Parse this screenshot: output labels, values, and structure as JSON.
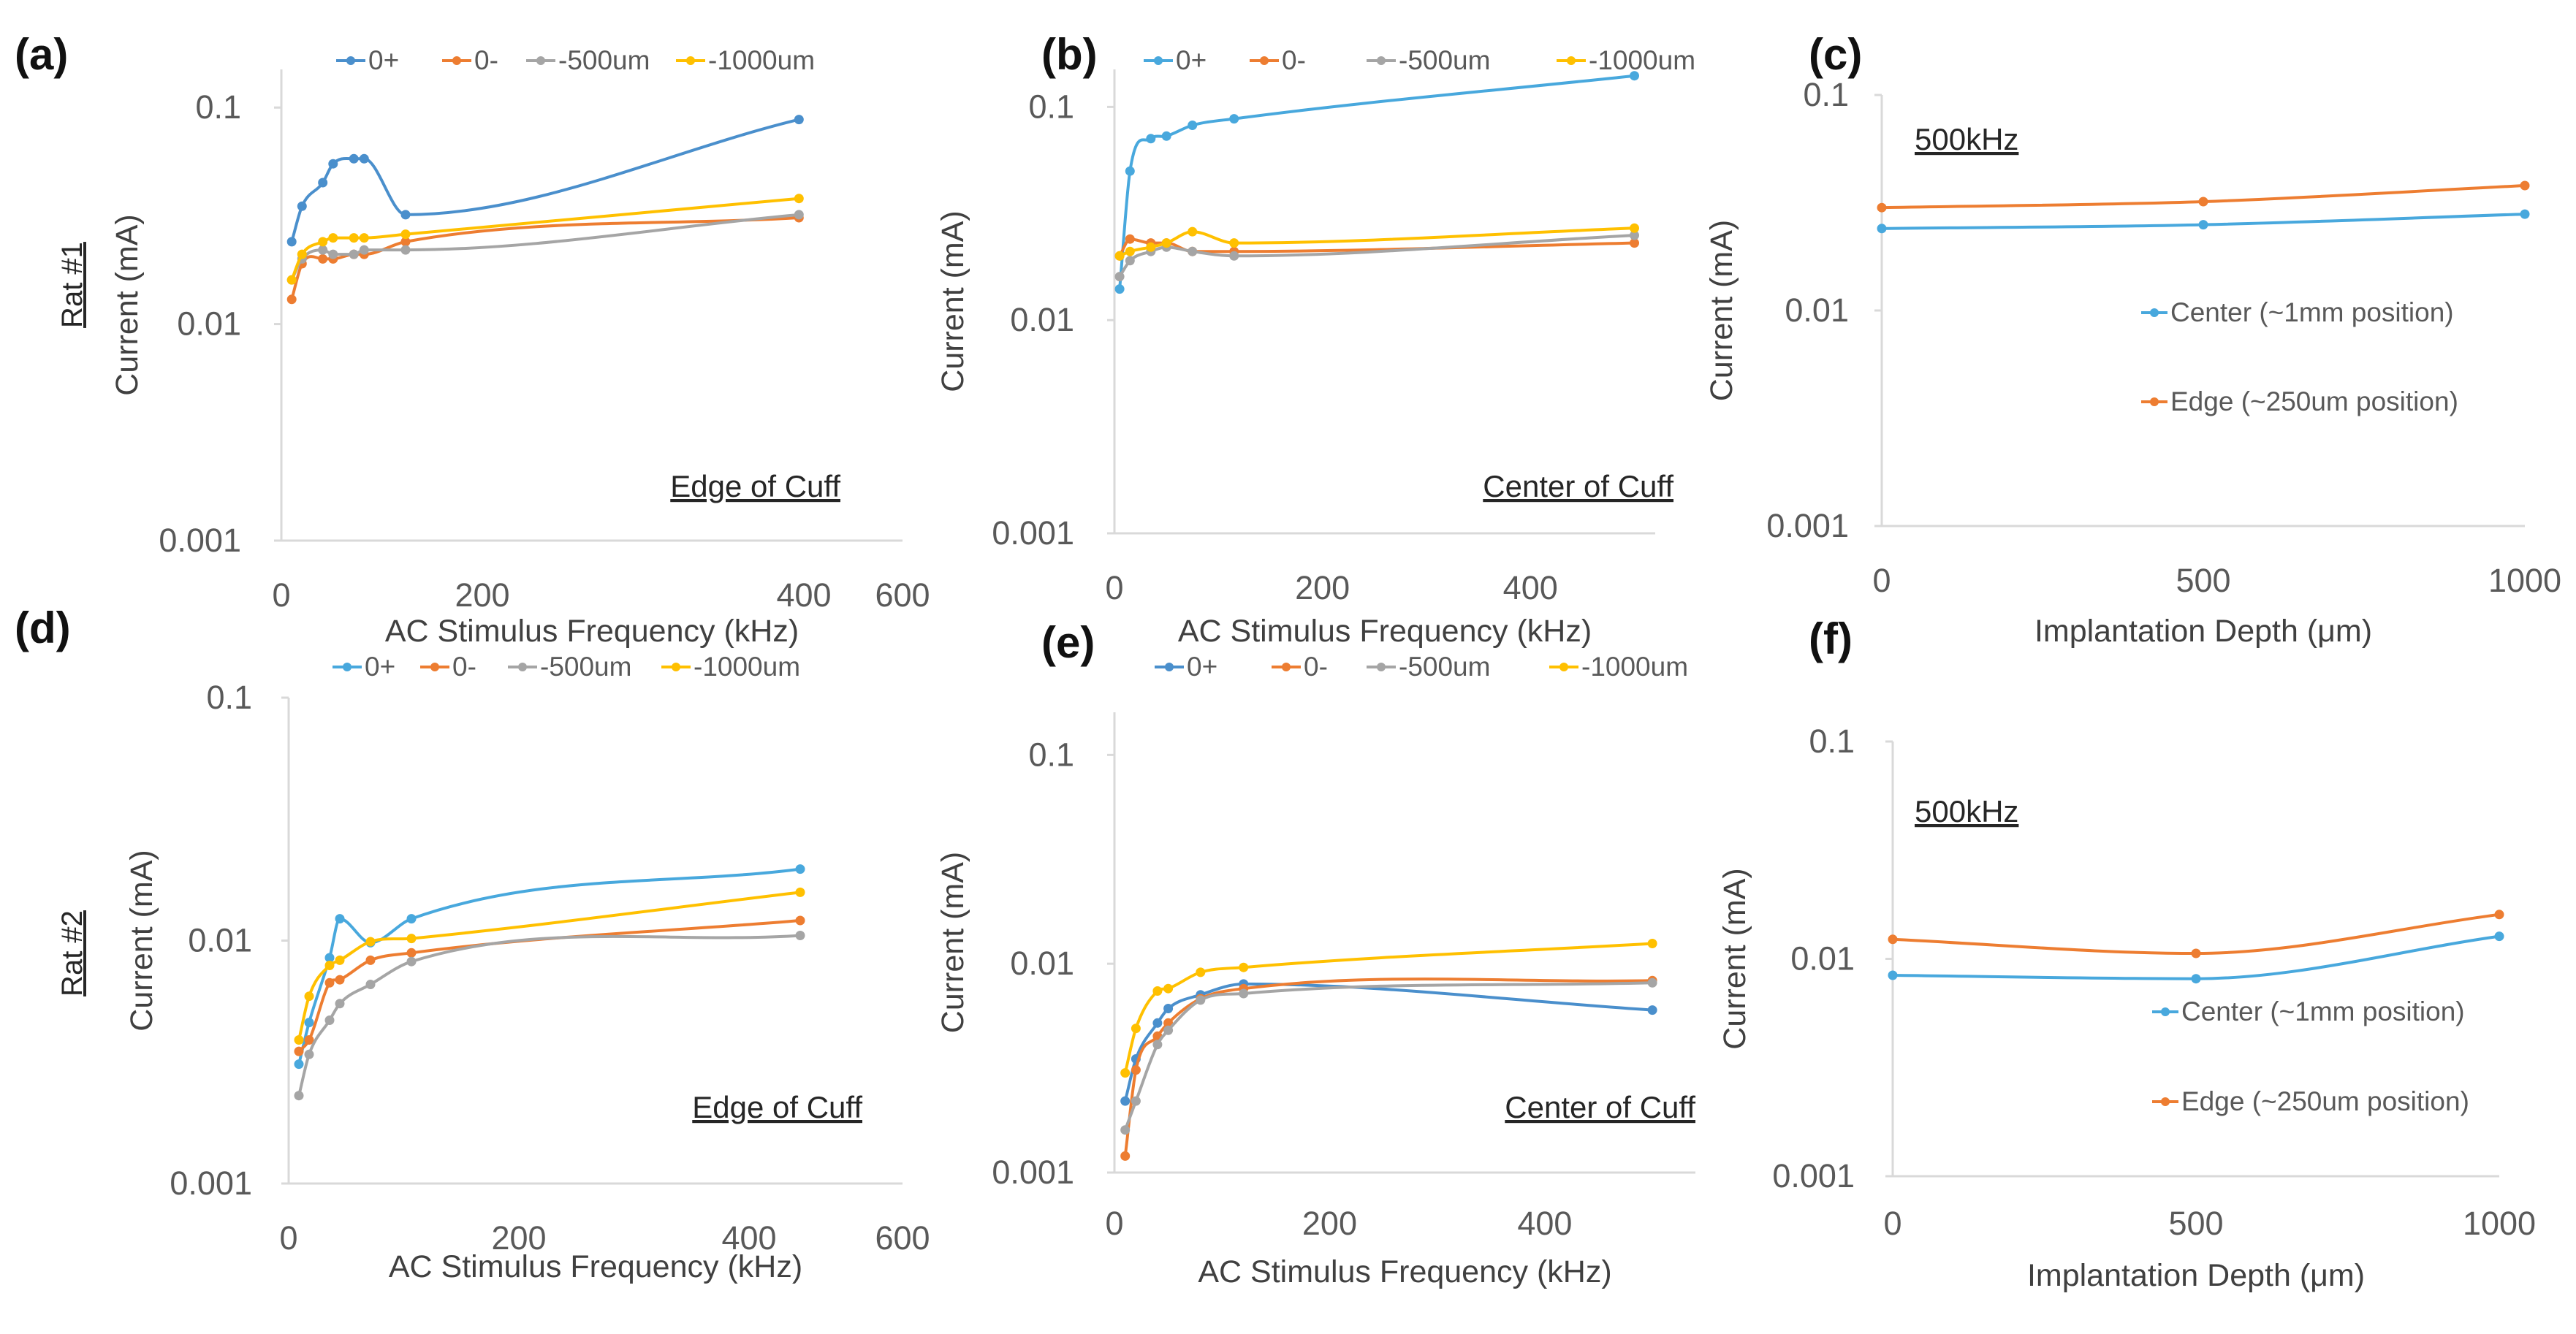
{
  "figure": {
    "row_labels": [
      "Rat #1",
      "Rat #2"
    ]
  },
  "colors": {
    "0+": "#4a8fcc",
    "0+ (b)": "#48a8dd",
    "0-": "#ed7d31",
    "-500um": "#a5a5a5",
    "-1000um": "#ffc000",
    "center": "#48a8dd",
    "edge": "#ed7d31"
  },
  "chart_data": [
    {
      "panel": "(a)",
      "type": "line",
      "yscale": "log",
      "xlabel": "AC Stimulus Frequency (kHz)",
      "ylabel": "Current (mA)",
      "xlim": [
        0,
        600
      ],
      "xticks": [
        "0",
        "200",
        "400",
        "600"
      ],
      "ylim": [
        0.001,
        0.15
      ],
      "yticks": [
        "0.001",
        "0.01",
        "0.1"
      ],
      "annotation": "Edge of Cuff",
      "series": [
        {
          "name": "0+",
          "x": [
            10,
            20,
            40,
            50,
            70,
            80,
            120,
            500
          ],
          "values": [
            0.024,
            0.035,
            0.045,
            0.055,
            0.058,
            0.058,
            0.032,
            0.088
          ]
        },
        {
          "name": "0-",
          "x": [
            10,
            20,
            40,
            50,
            70,
            80,
            120,
            500
          ],
          "values": [
            0.013,
            0.019,
            0.02,
            0.02,
            0.021,
            0.021,
            0.024,
            0.031
          ]
        },
        {
          "name": "-500um",
          "x": [
            10,
            20,
            40,
            50,
            70,
            80,
            120,
            500
          ],
          "values": [
            0.016,
            0.02,
            0.022,
            0.021,
            0.021,
            0.022,
            0.022,
            0.032
          ]
        },
        {
          "name": "-1000um",
          "x": [
            10,
            20,
            40,
            50,
            70,
            80,
            120,
            500
          ],
          "values": [
            0.016,
            0.021,
            0.024,
            0.025,
            0.025,
            0.025,
            0.026,
            0.038
          ]
        }
      ]
    },
    {
      "panel": "(b)",
      "type": "line",
      "yscale": "log",
      "xlabel": "AC Stimulus Frequency (kHz)",
      "ylabel": "Current (mA)",
      "xlim": [
        0,
        520
      ],
      "xticks": [
        "0",
        "200",
        "400"
      ],
      "ylim": [
        0.001,
        0.15
      ],
      "yticks": [
        "0.001",
        "0.01",
        "0.1"
      ],
      "annotation": "Center of Cuff",
      "series": [
        {
          "name": "0+",
          "x": [
            5,
            15,
            35,
            50,
            75,
            115,
            500
          ],
          "values": [
            0.014,
            0.05,
            0.071,
            0.073,
            0.082,
            0.088,
            0.14
          ]
        },
        {
          "name": "0-",
          "x": [
            5,
            15,
            35,
            50,
            75,
            115,
            500
          ],
          "values": [
            0.02,
            0.024,
            0.023,
            0.023,
            0.021,
            0.021,
            0.023
          ]
        },
        {
          "name": "-500um",
          "x": [
            5,
            15,
            35,
            50,
            75,
            115,
            500
          ],
          "values": [
            0.016,
            0.019,
            0.021,
            0.022,
            0.021,
            0.02,
            0.025
          ]
        },
        {
          "name": "-1000um",
          "x": [
            5,
            15,
            35,
            50,
            75,
            115,
            500
          ],
          "values": [
            0.02,
            0.021,
            0.022,
            0.023,
            0.026,
            0.023,
            0.027
          ]
        }
      ]
    },
    {
      "panel": "(c)",
      "type": "line",
      "yscale": "log",
      "xlabel": "Implantation Depth (μm)",
      "ylabel": "Current (mA)",
      "xlim": [
        0,
        1000
      ],
      "xticks": [
        "0",
        "500",
        "1000"
      ],
      "ylim": [
        0.001,
        0.1
      ],
      "yticks": [
        "0.001",
        "0.01",
        "0.1"
      ],
      "annotation": "500kHz",
      "series": [
        {
          "name": "Center (~1mm position)",
          "x": [
            0,
            500,
            1000
          ],
          "values": [
            0.024,
            0.025,
            0.028
          ]
        },
        {
          "name": "Edge (~250um position)",
          "x": [
            0,
            500,
            1000
          ],
          "values": [
            0.03,
            0.032,
            0.038
          ]
        }
      ]
    },
    {
      "panel": "(d)",
      "type": "line",
      "yscale": "log",
      "xlabel": "AC Stimulus Frequency (kHz)",
      "ylabel": "Current (mA)",
      "xlim": [
        0,
        600
      ],
      "xticks": [
        "0",
        "200",
        "400",
        "600"
      ],
      "ylim": [
        0.001,
        0.1
      ],
      "yticks": [
        "0.001",
        "0.01",
        "0.1"
      ],
      "annotation": "Edge of Cuff",
      "series": [
        {
          "name": "0+",
          "x": [
            10,
            20,
            40,
            50,
            80,
            120,
            500
          ],
          "values": [
            0.0031,
            0.0046,
            0.0085,
            0.0123,
            0.0098,
            0.0123,
            0.0197
          ]
        },
        {
          "name": "0-",
          "x": [
            10,
            20,
            40,
            50,
            80,
            120,
            500
          ],
          "values": [
            0.0035,
            0.0039,
            0.0067,
            0.0069,
            0.0083,
            0.0089,
            0.0121
          ]
        },
        {
          "name": "-500um",
          "x": [
            10,
            20,
            40,
            50,
            80,
            120,
            500
          ],
          "values": [
            0.0023,
            0.0034,
            0.0047,
            0.0055,
            0.0066,
            0.0082,
            0.0105
          ]
        },
        {
          "name": "-1000um",
          "x": [
            10,
            20,
            40,
            50,
            80,
            120,
            500
          ],
          "values": [
            0.0039,
            0.0059,
            0.0079,
            0.0083,
            0.0099,
            0.0102,
            0.0158
          ]
        }
      ]
    },
    {
      "panel": "(e)",
      "type": "line",
      "yscale": "log",
      "xlabel": "AC Stimulus Frequency (kHz)",
      "ylabel": "Current (mA)",
      "xlim": [
        0,
        540
      ],
      "xticks": [
        "0",
        "200",
        "400"
      ],
      "ylim": [
        0.001,
        0.16
      ],
      "yticks": [
        "0.001",
        "0.01",
        "0.1"
      ],
      "annotation": "Center of Cuff",
      "series": [
        {
          "name": "0+",
          "x": [
            10,
            20,
            40,
            50,
            80,
            120,
            500
          ],
          "values": [
            0.0022,
            0.0035,
            0.0052,
            0.0061,
            0.0071,
            0.008,
            0.006
          ]
        },
        {
          "name": "0-",
          "x": [
            10,
            20,
            40,
            50,
            80,
            120,
            500
          ],
          "values": [
            0.0012,
            0.0031,
            0.0045,
            0.0052,
            0.0068,
            0.0076,
            0.0083
          ]
        },
        {
          "name": "-500um",
          "x": [
            10,
            20,
            40,
            50,
            80,
            120,
            500
          ],
          "values": [
            0.0016,
            0.0022,
            0.0041,
            0.0048,
            0.0067,
            0.0072,
            0.0081
          ]
        },
        {
          "name": "-1000um",
          "x": [
            10,
            20,
            40,
            50,
            80,
            120,
            500
          ],
          "values": [
            0.003,
            0.0049,
            0.0074,
            0.0076,
            0.0091,
            0.0096,
            0.0125
          ]
        }
      ]
    },
    {
      "panel": "(f)",
      "type": "line",
      "yscale": "log",
      "xlabel": "Implantation Depth (μm)",
      "ylabel": "Current (mA)",
      "xlim": [
        0,
        1000
      ],
      "xticks": [
        "0",
        "500",
        "1000"
      ],
      "ylim": [
        0.001,
        0.1
      ],
      "yticks": [
        "0.001",
        "0.01",
        "0.1"
      ],
      "annotation": "500kHz",
      "series": [
        {
          "name": "Center (~1mm position)",
          "x": [
            0,
            500,
            1000
          ],
          "values": [
            0.0084,
            0.0081,
            0.0127
          ]
        },
        {
          "name": "Edge (~250um position)",
          "x": [
            0,
            500,
            1000
          ],
          "values": [
            0.0123,
            0.0106,
            0.016
          ]
        }
      ]
    }
  ]
}
